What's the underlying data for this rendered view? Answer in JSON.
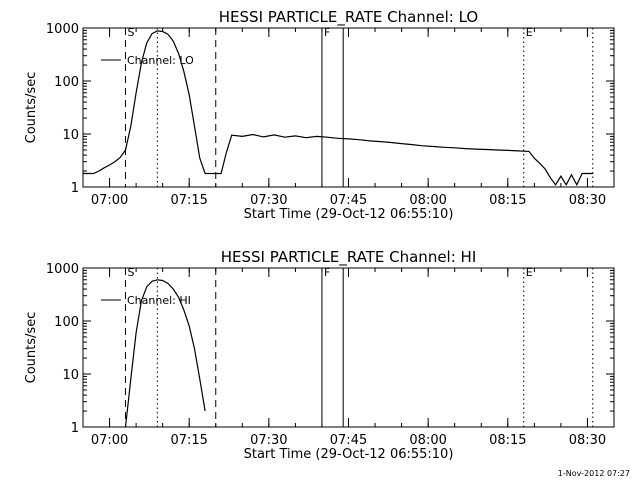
{
  "footer": {
    "timestamp": "1-Nov-2012 07:27"
  },
  "chart_data": [
    {
      "type": "line",
      "title": "HESSI PARTICLE_RATE Channel: LO",
      "xlabel": "Start Time (29-Oct-12 06:55:10)",
      "ylabel": "Counts/sec",
      "yscale": "log",
      "ylim": [
        1,
        1000
      ],
      "xlim_minutes_of_hour": [
        "06:55",
        "08:35"
      ],
      "x_ticks": [
        "07:00",
        "07:15",
        "07:30",
        "07:45",
        "08:00",
        "08:15",
        "08:30"
      ],
      "y_ticks": [
        "1",
        "10",
        "100",
        "1000"
      ],
      "legend": {
        "position": "upper-left",
        "label": "Channel: LO"
      },
      "markers": [
        {
          "label": "S",
          "time": "07:03",
          "style": "dashed"
        },
        {
          "label": "",
          "time": "07:09",
          "style": "dotted"
        },
        {
          "label": "",
          "time": "07:20",
          "style": "dashed"
        },
        {
          "label": "F",
          "time": "07:40",
          "style": "solid"
        },
        {
          "label": "",
          "time": "07:44",
          "style": "solid"
        },
        {
          "label": "E",
          "time": "08:18",
          "style": "dotted"
        },
        {
          "label": "",
          "time": "08:31",
          "style": "dotted"
        }
      ],
      "series": [
        {
          "name": "Channel: LO",
          "points": [
            [
              "06:55",
              1.8
            ],
            [
              "06:57",
              1.8
            ],
            [
              "06:58",
              2.0
            ],
            [
              "06:59",
              2.3
            ],
            [
              "07:00",
              2.6
            ],
            [
              "07:01",
              3.0
            ],
            [
              "07:02",
              3.6
            ],
            [
              "07:03",
              5.0
            ],
            [
              "07:04",
              14
            ],
            [
              "07:05",
              60
            ],
            [
              "07:06",
              220
            ],
            [
              "07:07",
              520
            ],
            [
              "07:08",
              780
            ],
            [
              "07:09",
              880
            ],
            [
              "07:10",
              860
            ],
            [
              "07:11",
              760
            ],
            [
              "07:12",
              560
            ],
            [
              "07:13",
              330
            ],
            [
              "07:14",
              150
            ],
            [
              "07:15",
              55
            ],
            [
              "07:16",
              14
            ],
            [
              "07:17",
              3.5
            ],
            [
              "07:18",
              1.8
            ],
            [
              "07:19",
              1.8
            ],
            [
              "07:20",
              1.8
            ],
            [
              "07:21",
              1.8
            ],
            [
              "07:22",
              4.5
            ],
            [
              "07:23",
              9.5
            ],
            [
              "07:25",
              9.0
            ],
            [
              "07:27",
              9.8
            ],
            [
              "07:29",
              8.8
            ],
            [
              "07:31",
              9.6
            ],
            [
              "07:33",
              8.7
            ],
            [
              "07:35",
              9.2
            ],
            [
              "07:37",
              8.5
            ],
            [
              "07:39",
              9.0
            ],
            [
              "07:41",
              8.7
            ],
            [
              "07:43",
              8.3
            ],
            [
              "07:45",
              8.1
            ],
            [
              "07:47",
              7.8
            ],
            [
              "07:49",
              7.4
            ],
            [
              "07:51",
              7.2
            ],
            [
              "07:53",
              6.9
            ],
            [
              "07:55",
              6.6
            ],
            [
              "07:57",
              6.3
            ],
            [
              "07:59",
              6.0
            ],
            [
              "08:01",
              5.8
            ],
            [
              "08:03",
              5.6
            ],
            [
              "08:05",
              5.5
            ],
            [
              "08:07",
              5.3
            ],
            [
              "08:09",
              5.2
            ],
            [
              "08:11",
              5.1
            ],
            [
              "08:13",
              5.0
            ],
            [
              "08:15",
              4.9
            ],
            [
              "08:17",
              4.8
            ],
            [
              "08:19",
              4.7
            ],
            [
              "08:20",
              3.5
            ],
            [
              "08:21",
              2.8
            ],
            [
              "08:22",
              2.2
            ],
            [
              "08:23",
              1.5
            ],
            [
              "08:24",
              1.1
            ],
            [
              "08:25",
              1.6
            ],
            [
              "08:26",
              1.1
            ],
            [
              "08:27",
              1.7
            ],
            [
              "08:28",
              1.1
            ],
            [
              "08:29",
              1.8
            ],
            [
              "08:30",
              1.8
            ],
            [
              "08:31",
              1.8
            ]
          ]
        }
      ]
    },
    {
      "type": "line",
      "title": "HESSI PARTICLE_RATE Channel: HI",
      "xlabel": "Start Time (29-Oct-12 06:55:10)",
      "ylabel": "Counts/sec",
      "yscale": "log",
      "ylim": [
        1,
        1000
      ],
      "xlim_minutes_of_hour": [
        "06:55",
        "08:35"
      ],
      "x_ticks": [
        "07:00",
        "07:15",
        "07:30",
        "07:45",
        "08:00",
        "08:15",
        "08:30"
      ],
      "y_ticks": [
        "1",
        "10",
        "100",
        "1000"
      ],
      "legend": {
        "position": "upper-left",
        "label": "Channel: HI"
      },
      "markers": [
        {
          "label": "S",
          "time": "07:03",
          "style": "dashed"
        },
        {
          "label": "",
          "time": "07:09",
          "style": "dotted"
        },
        {
          "label": "",
          "time": "07:20",
          "style": "dashed"
        },
        {
          "label": "F",
          "time": "07:40",
          "style": "solid"
        },
        {
          "label": "",
          "time": "07:44",
          "style": "solid"
        },
        {
          "label": "E",
          "time": "08:18",
          "style": "dotted"
        },
        {
          "label": "",
          "time": "08:31",
          "style": "dotted"
        }
      ],
      "series": [
        {
          "name": "Channel: HI",
          "points": [
            [
              "07:03",
              1.0
            ],
            [
              "07:04",
              8
            ],
            [
              "07:05",
              60
            ],
            [
              "07:06",
              240
            ],
            [
              "07:07",
              440
            ],
            [
              "07:08",
              560
            ],
            [
              "07:09",
              600
            ],
            [
              "07:10",
              580
            ],
            [
              "07:11",
              510
            ],
            [
              "07:12",
              400
            ],
            [
              "07:13",
              280
            ],
            [
              "07:14",
              160
            ],
            [
              "07:15",
              80
            ],
            [
              "07:16",
              30
            ],
            [
              "07:17",
              8
            ],
            [
              "07:18",
              2.0
            ]
          ]
        }
      ]
    }
  ]
}
